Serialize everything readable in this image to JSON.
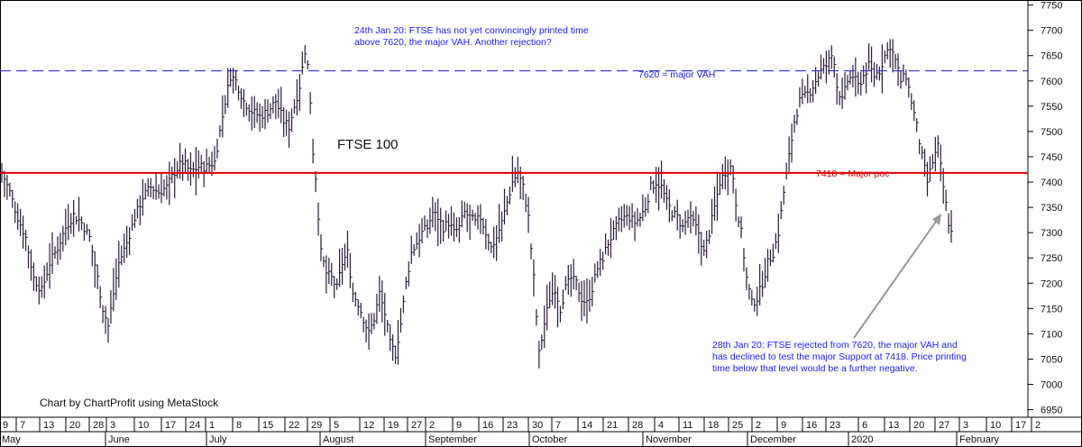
{
  "colors": {
    "background": "#ffffff",
    "bar": "#2a1a3a",
    "vah_line": "#3333cc",
    "poc_line": "#dd0000",
    "annotation": "#1a1aff",
    "arrow": "#999999"
  },
  "chart_data": {
    "type": "ohlc-bar",
    "title": "FTSE 100",
    "credit": "Chart by ChartProfit using MetaStock",
    "ylim": [
      6935,
      7760
    ],
    "y_ticks": [
      6950,
      7000,
      7050,
      7100,
      7150,
      7200,
      7250,
      7300,
      7350,
      7400,
      7450,
      7500,
      7550,
      7600,
      7650,
      7700,
      7750
    ],
    "x_day_labels": [
      "9",
      "7",
      "13",
      "20",
      "28",
      "3",
      "10",
      "17",
      "24",
      "1",
      "8",
      "15",
      "22",
      "29",
      "5",
      "12",
      "19",
      "27",
      "2",
      "9",
      "16",
      "23",
      "30",
      "7",
      "14",
      "21",
      "28",
      "4",
      "11",
      "18",
      "25",
      "2",
      "9",
      "16",
      "23",
      "6",
      "13",
      "20",
      "27",
      "3",
      "10",
      "17",
      "2"
    ],
    "x_month_labels": [
      "May",
      "June",
      "July",
      "August",
      "September",
      "October",
      "November",
      "December",
      "2020",
      "February"
    ],
    "levels": [
      {
        "name": "7620 = major VAH",
        "value": 7620,
        "style": "dashed",
        "color": "#3333cc"
      },
      {
        "name": "7418 = Major poc",
        "value": 7418,
        "style": "solid",
        "color": "#dd0000"
      }
    ],
    "annotations": {
      "top": [
        "24th Jan 20: FTSE has not yet convincingly printed time",
        "above 7620, the major VAH. Another rejection?"
      ],
      "bottom": [
        "28th Jan 20: FTSE rejected from 7620, the major VAH and",
        "has declined to test the major Support at 7418. Price printing",
        "time below that level would be a further negative."
      ]
    },
    "close_points": [
      [
        0,
        7420
      ],
      [
        3,
        7380
      ],
      [
        6,
        7330
      ],
      [
        9,
        7290
      ],
      [
        12,
        7210
      ],
      [
        15,
        7185
      ],
      [
        18,
        7240
      ],
      [
        21,
        7270
      ],
      [
        24,
        7310
      ],
      [
        27,
        7335
      ],
      [
        30,
        7320
      ],
      [
        33,
        7290
      ],
      [
        36,
        7210
      ],
      [
        38,
        7150
      ],
      [
        40,
        7115
      ],
      [
        42,
        7180
      ],
      [
        44,
        7240
      ],
      [
        47,
        7280
      ],
      [
        50,
        7330
      ],
      [
        53,
        7370
      ],
      [
        56,
        7390
      ],
      [
        59,
        7380
      ],
      [
        62,
        7390
      ],
      [
        65,
        7420
      ],
      [
        68,
        7440
      ],
      [
        71,
        7420
      ],
      [
        74,
        7430
      ],
      [
        77,
        7430
      ],
      [
        80,
        7440
      ],
      [
        82,
        7500
      ],
      [
        84,
        7560
      ],
      [
        86,
        7610
      ],
      [
        88,
        7600
      ],
      [
        91,
        7560
      ],
      [
        94,
        7540
      ],
      [
        97,
        7530
      ],
      [
        100,
        7540
      ],
      [
        103,
        7560
      ],
      [
        106,
        7520
      ],
      [
        108,
        7510
      ],
      [
        110,
        7550
      ],
      [
        112,
        7590
      ],
      [
        114,
        7660
      ],
      [
        115,
        7630
      ],
      [
        116,
        7560
      ],
      [
        117,
        7460
      ],
      [
        118,
        7410
      ],
      [
        120,
        7260
      ],
      [
        122,
        7220
      ],
      [
        124,
        7210
      ],
      [
        126,
        7190
      ],
      [
        128,
        7240
      ],
      [
        130,
        7260
      ],
      [
        132,
        7180
      ],
      [
        134,
        7160
      ],
      [
        136,
        7130
      ],
      [
        138,
        7100
      ],
      [
        140,
        7130
      ],
      [
        142,
        7180
      ],
      [
        144,
        7140
      ],
      [
        146,
        7080
      ],
      [
        148,
        7060
      ],
      [
        150,
        7120
      ],
      [
        152,
        7200
      ],
      [
        154,
        7260
      ],
      [
        156,
        7280
      ],
      [
        158,
        7300
      ],
      [
        160,
        7310
      ],
      [
        162,
        7340
      ],
      [
        164,
        7330
      ],
      [
        166,
        7310
      ],
      [
        168,
        7320
      ],
      [
        170,
        7300
      ],
      [
        172,
        7310
      ],
      [
        174,
        7340
      ],
      [
        176,
        7330
      ],
      [
        178,
        7320
      ],
      [
        180,
        7330
      ],
      [
        182,
        7300
      ],
      [
        184,
        7270
      ],
      [
        186,
        7290
      ],
      [
        188,
        7320
      ],
      [
        190,
        7360
      ],
      [
        192,
        7400
      ],
      [
        194,
        7420
      ],
      [
        196,
        7390
      ],
      [
        198,
        7330
      ],
      [
        200,
        7210
      ],
      [
        202,
        7060
      ],
      [
        204,
        7120
      ],
      [
        206,
        7170
      ],
      [
        208,
        7190
      ],
      [
        210,
        7150
      ],
      [
        212,
        7190
      ],
      [
        214,
        7210
      ],
      [
        216,
        7200
      ],
      [
        218,
        7170
      ],
      [
        220,
        7160
      ],
      [
        222,
        7190
      ],
      [
        224,
        7230
      ],
      [
        226,
        7250
      ],
      [
        228,
        7280
      ],
      [
        230,
        7300
      ],
      [
        232,
        7320
      ],
      [
        234,
        7330
      ],
      [
        236,
        7330
      ],
      [
        238,
        7320
      ],
      [
        240,
        7330
      ],
      [
        242,
        7350
      ],
      [
        244,
        7390
      ],
      [
        246,
        7400
      ],
      [
        248,
        7390
      ],
      [
        250,
        7360
      ],
      [
        252,
        7340
      ],
      [
        254,
        7330
      ],
      [
        256,
        7310
      ],
      [
        258,
        7330
      ],
      [
        260,
        7320
      ],
      [
        262,
        7300
      ],
      [
        264,
        7260
      ],
      [
        266,
        7300
      ],
      [
        268,
        7350
      ],
      [
        270,
        7400
      ],
      [
        272,
        7420
      ],
      [
        274,
        7430
      ],
      [
        275,
        7410
      ],
      [
        276,
        7360
      ],
      [
        278,
        7300
      ],
      [
        280,
        7210
      ],
      [
        282,
        7160
      ],
      [
        284,
        7170
      ],
      [
        286,
        7200
      ],
      [
        288,
        7240
      ],
      [
        290,
        7260
      ],
      [
        292,
        7300
      ],
      [
        294,
        7380
      ],
      [
        296,
        7450
      ],
      [
        298,
        7520
      ],
      [
        300,
        7560
      ],
      [
        302,
        7570
      ],
      [
        304,
        7580
      ],
      [
        306,
        7600
      ],
      [
        308,
        7620
      ],
      [
        310,
        7630
      ],
      [
        312,
        7650
      ],
      [
        313,
        7640
      ],
      [
        314,
        7590
      ],
      [
        316,
        7560
      ],
      [
        318,
        7600
      ],
      [
        320,
        7610
      ],
      [
        322,
        7590
      ],
      [
        324,
        7610
      ],
      [
        326,
        7630
      ],
      [
        328,
        7610
      ],
      [
        330,
        7620
      ],
      [
        332,
        7650
      ],
      [
        334,
        7670
      ],
      [
        336,
        7640
      ],
      [
        338,
        7600
      ],
      [
        340,
        7610
      ],
      [
        342,
        7560
      ],
      [
        344,
        7510
      ],
      [
        346,
        7450
      ],
      [
        348,
        7400
      ],
      [
        350,
        7440
      ],
      [
        352,
        7470
      ],
      [
        354,
        7390
      ],
      [
        356,
        7320
      ],
      [
        357,
        7300
      ]
    ]
  }
}
